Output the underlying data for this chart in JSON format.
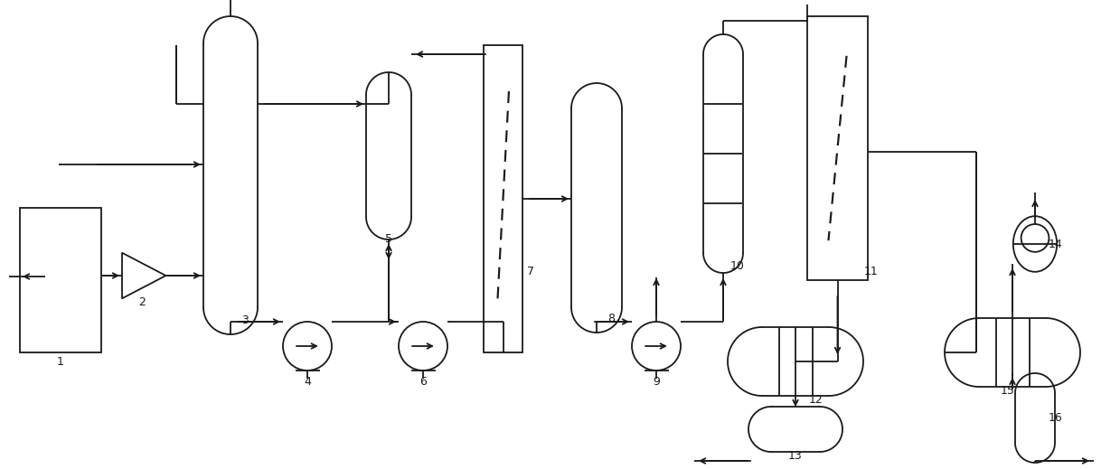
{
  "bg_color": "#ffffff",
  "line_color": "#1a1a1a",
  "fig_width": 12.39,
  "fig_height": 5.19,
  "lw": 1.3
}
